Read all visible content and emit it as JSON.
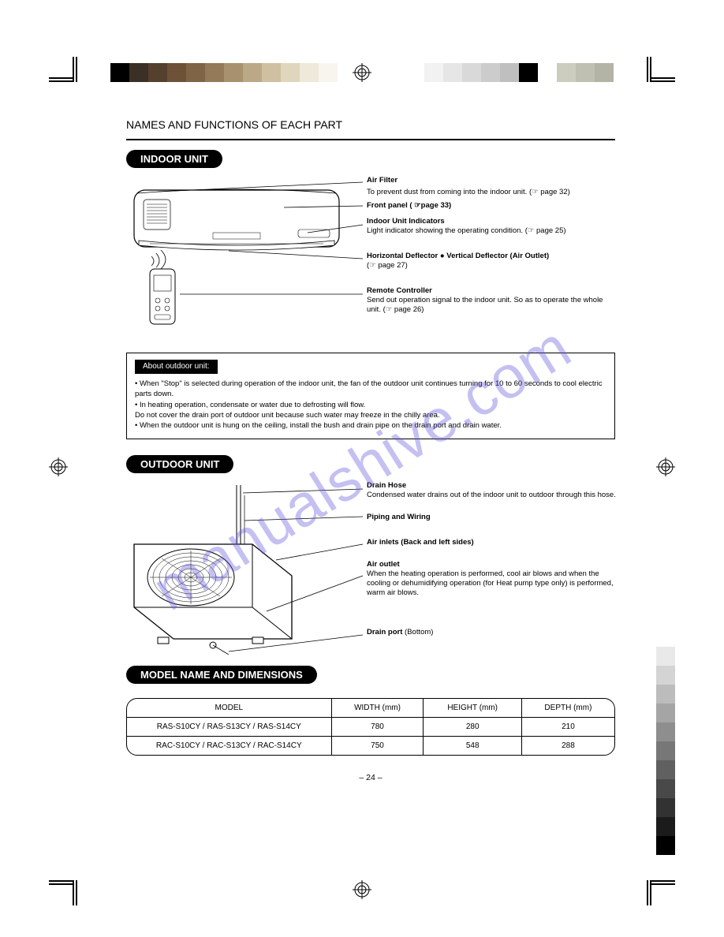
{
  "watermark_text": "manualshive.com",
  "header_line": "NAMES AND FUNCTIONS OF EACH PART",
  "indoor": {
    "heading": "INDOOR UNIT",
    "labels": {
      "air_filter": "Air Filter",
      "air_filter_note": "To prevent dust from coming into the indoor unit. (☞ page 32)",
      "front_panel": "Front panel ( ☞page 33)",
      "indicators": "Indoor Unit Indicators",
      "indicators_note": "Light indicator showing the operating condition. (☞ page 25)",
      "deflector_h": "Horizontal Deflector ● Vertical Deflector (Air Outlet)",
      "deflector_note": "(☞ page 27)",
      "remote": "Remote Controller",
      "remote_note": "Send out operation signal to the indoor unit. So as to operate the whole unit. (☞ page 26)"
    }
  },
  "note": {
    "title": "About outdoor unit:",
    "lines": [
      "• When \"Stop\" is selected during operation of the indoor unit, the fan of the outdoor unit continues turning for 10 to 60 seconds to cool electric parts down.",
      "• In heating operation, condensate or water due to defrosting will flow.",
      "  Do not cover the drain port of outdoor unit because such water may freeze in the chilly area.",
      "• When the outdoor unit is hung on the ceiling, install the bush and drain pipe on the drain port and drain water."
    ]
  },
  "outdoor": {
    "heading": "OUTDOOR UNIT",
    "labels": {
      "drain_hose": "Drain Hose",
      "drain_hose_note": "Condensed water drains out of the indoor unit to outdoor through this hose.",
      "piping": "Piping and Wiring",
      "air_inlet": "Air inlets (Back and left sides)",
      "air_outlet": "Air outlet",
      "air_outlet_note": "When the heating operation is performed, cool air blows and when the cooling or dehumidifying operation (for Heat pump type only) is performed, warm air blows.",
      "drain_port": "Drain port",
      "drain_port_note": "(Bottom)"
    }
  },
  "models": {
    "heading": "MODEL NAME AND DIMENSIONS",
    "columns": [
      "MODEL",
      "WIDTH (mm)",
      "HEIGHT (mm)",
      "DEPTH (mm)"
    ],
    "rows": [
      [
        "RAS-S10CY / RAS-S13CY / RAS-S14CY",
        "780",
        "280",
        "210"
      ],
      [
        "RAC-S10CY / RAC-S13CY / RAC-S14CY",
        "750",
        "548",
        "288"
      ]
    ]
  },
  "page_number": "– 24 –",
  "colors": {
    "top_left_bar": [
      "#000000",
      "#3b3026",
      "#553f2d",
      "#6d5238",
      "#7f6445",
      "#947a58",
      "#a8916e",
      "#bba887",
      "#cfc0a2",
      "#e0d6be",
      "#efe9db",
      "#f8f5ee"
    ],
    "top_right_bar": [
      "#f2f2f2",
      "#e6e6e6",
      "#d9d9d9",
      "#cccccc",
      "#bfbfbf",
      "#000000",
      "#ffffff",
      "#ccccbf",
      "#bfbfb2",
      "#b3b3a6"
    ],
    "side_bar": [
      "#e9e9e9",
      "#d4d4d4",
      "#bcbcbc",
      "#a5a5a5",
      "#8e8e8e",
      "#777777",
      "#606060",
      "#494949",
      "#323232",
      "#1b1b1b",
      "#000000"
    ]
  }
}
